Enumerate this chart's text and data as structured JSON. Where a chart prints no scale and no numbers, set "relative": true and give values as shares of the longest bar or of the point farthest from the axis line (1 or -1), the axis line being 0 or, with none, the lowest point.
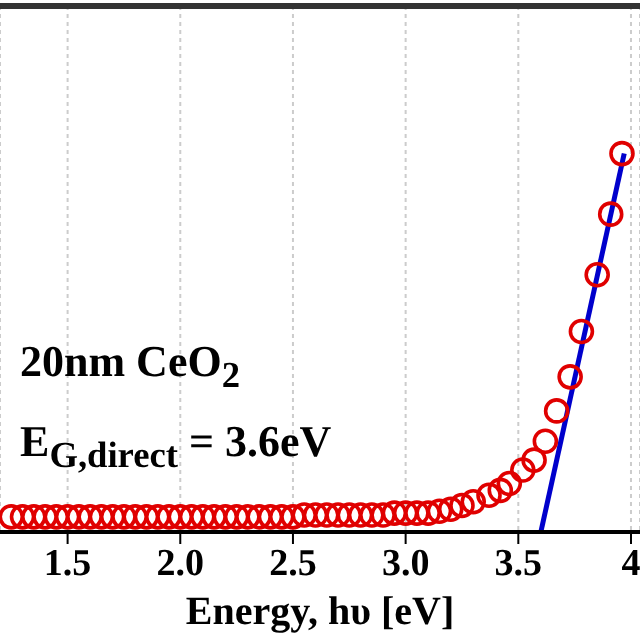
{
  "chart_data": {
    "type": "scatter",
    "xlabel": "Energy, hυ [eV]",
    "relative": true,
    "annotations": [
      "20nm CeO$_{2}$",
      "E$_{G,direct}$ = 3.6eV"
    ],
    "xlim": [
      1.2,
      4.04
    ],
    "xticks": [
      1.5,
      {
        "value": 2,
        "label": "2.0"
      },
      2.5,
      {
        "value": 3,
        "label": "3.0"
      },
      3.5,
      4
    ],
    "grid": "x",
    "series": [
      {
        "color": "#e00000",
        "marker": "circle",
        "x": [
          1.25,
          1.3,
          1.35,
          1.4,
          1.45,
          1.5,
          1.55,
          1.6,
          1.65,
          1.7,
          1.75,
          1.8,
          1.85,
          1.9,
          1.95,
          2.0,
          2.05,
          2.1,
          2.15,
          2.2,
          2.25,
          2.3,
          2.35,
          2.4,
          2.45,
          2.5,
          2.55,
          2.6,
          2.65,
          2.7,
          2.75,
          2.8,
          2.85,
          2.9,
          2.95,
          3.0,
          3.05,
          3.1,
          3.15,
          3.2,
          3.25,
          3.3,
          3.37,
          3.42,
          3.46,
          3.52,
          3.57,
          3.62,
          3.67,
          3.73,
          3.78,
          3.85,
          3.91,
          3.96
        ],
        "values": [
          0.04,
          0.04,
          0.04,
          0.04,
          0.04,
          0.04,
          0.04,
          0.04,
          0.04,
          0.04,
          0.04,
          0.04,
          0.04,
          0.04,
          0.04,
          0.04,
          0.04,
          0.04,
          0.04,
          0.04,
          0.04,
          0.04,
          0.04,
          0.04,
          0.04,
          0.04,
          0.045,
          0.045,
          0.045,
          0.045,
          0.045,
          0.045,
          0.045,
          0.045,
          0.05,
          0.05,
          0.05,
          0.05,
          0.055,
          0.06,
          0.07,
          0.08,
          0.097,
          0.11,
          0.128,
          0.164,
          0.19,
          0.24,
          0.32,
          0.41,
          0.53,
          0.68,
          0.84,
          1.0
        ]
      },
      {
        "type": "line",
        "color": "#0000cc",
        "line_style": "solid",
        "x": [
          3.6,
          3.97
        ],
        "values": [
          0,
          1.0
        ]
      }
    ]
  }
}
